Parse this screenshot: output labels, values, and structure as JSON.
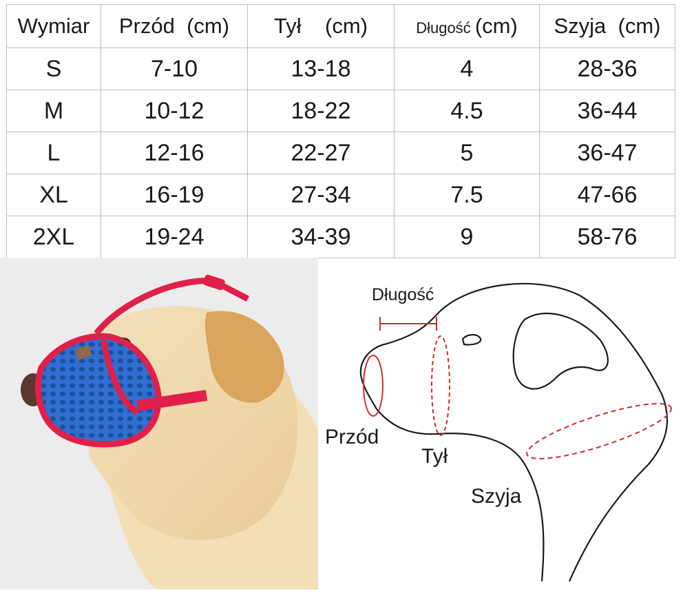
{
  "table": {
    "headers": [
      {
        "label": "Wymiar",
        "unit": ""
      },
      {
        "label": "Przód",
        "unit": "(cm)"
      },
      {
        "label": "Tył",
        "unit": "(cm)"
      },
      {
        "label": "Długość",
        "unit": "(cm)"
      },
      {
        "label": "Szyja",
        "unit": "(cm)"
      }
    ],
    "rows": [
      {
        "size": "S",
        "front": "7-10",
        "back": "13-18",
        "length": "4",
        "neck": "28-36"
      },
      {
        "size": "M",
        "front": "10-12",
        "back": "18-22",
        "length": "4.5",
        "neck": "36-44"
      },
      {
        "size": "L",
        "front": "12-16",
        "back": "22-27",
        "length": "5",
        "neck": "36-47"
      },
      {
        "size": "XL",
        "front": "16-19",
        "back": "27-34",
        "length": "7.5",
        "neck": "47-66"
      },
      {
        "size": "2XL",
        "front": "19-24",
        "back": "34-39",
        "length": "9",
        "neck": "58-76"
      }
    ]
  },
  "diagram": {
    "length_label": "Długość",
    "front_label": "Przód",
    "back_label": "Tył",
    "neck_label": "Szyja",
    "measure_color": "#d62b2b",
    "outline_color": "#1a1a1a"
  },
  "photo": {
    "muzzle_mesh_color": "#2f6fd1",
    "strap_color": "#e0204a",
    "fur_color": "#f2dcb0"
  }
}
